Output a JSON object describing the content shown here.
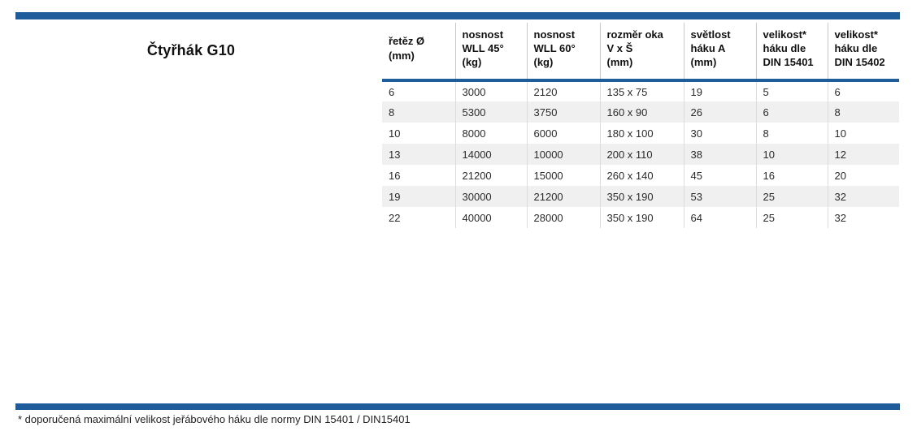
{
  "title": "Čtyřhák G10",
  "colors": {
    "accent_blue": "#1f5c9c",
    "row_alt_gray": "#f0f0f0",
    "divider_gray": "#c8c8c8"
  },
  "table": {
    "columns": [
      {
        "label": "řetěz Ø\n(mm)"
      },
      {
        "label": "nosnost\nWLL 45°\n(kg)"
      },
      {
        "label": "nosnost\nWLL 60°\n(kg)"
      },
      {
        "label": "rozměr oka\nV x Š\n(mm)"
      },
      {
        "label": "světlost\nháku A\n(mm)"
      },
      {
        "label": "velikost*\nháku dle\nDIN 15401"
      },
      {
        "label": "velikost*\nháku dle\nDIN 15402"
      }
    ],
    "rows": [
      [
        "6",
        "3000",
        "2120",
        "135 x 75",
        "19",
        "5",
        "6"
      ],
      [
        "8",
        "5300",
        "3750",
        "160 x 90",
        "26",
        "6",
        "8"
      ],
      [
        "10",
        "8000",
        "6000",
        "180 x 100",
        "30",
        "8",
        "10"
      ],
      [
        "13",
        "14000",
        "10000",
        "200 x 110",
        "38",
        "10",
        "12"
      ],
      [
        "16",
        "21200",
        "15000",
        "260 x 140",
        "45",
        "16",
        "20"
      ],
      [
        "19",
        "30000",
        "21200",
        "350 x 190",
        "53",
        "25",
        "32"
      ],
      [
        "22",
        "40000",
        "28000",
        "350 x 190",
        "64",
        "25",
        "32"
      ]
    ]
  },
  "footnote": "* doporučená maximální velikost jeřábového háku dle normy DIN 15401 / DIN15401"
}
